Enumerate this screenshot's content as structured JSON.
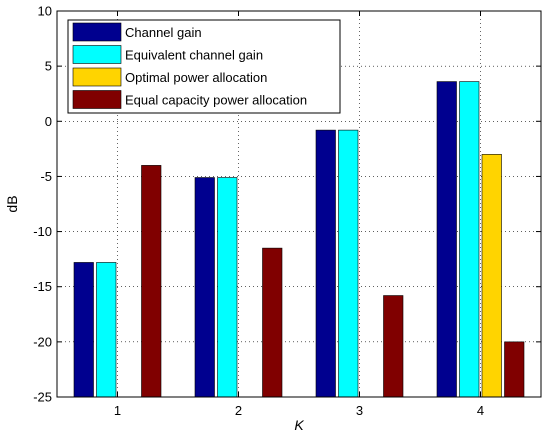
{
  "chart_data": {
    "type": "bar",
    "categories": [
      "1",
      "2",
      "3",
      "4"
    ],
    "xlabel": "K",
    "ylabel": "dB",
    "ylim": [
      -25,
      10
    ],
    "yticks": [
      "-25",
      "-20",
      "-15",
      "-10",
      "-5",
      "0",
      "5",
      "10"
    ],
    "grid": true,
    "legend_position": "top-left",
    "series": [
      {
        "name": "Channel gain",
        "color": "#00008f",
        "values": [
          -12.8,
          -5.1,
          -0.8,
          3.6
        ]
      },
      {
        "name": "Equivalent channel gain",
        "color": "#00ffff",
        "values": [
          -12.8,
          -5.1,
          -0.8,
          3.6
        ]
      },
      {
        "name": "Optimal power allocation",
        "color": "#ffd400",
        "values": [
          null,
          null,
          null,
          -3.0
        ]
      },
      {
        "name": "Equal capacity power allocation",
        "color": "#800000",
        "values": [
          -4.0,
          -11.5,
          -15.8,
          -20.0
        ]
      }
    ]
  }
}
